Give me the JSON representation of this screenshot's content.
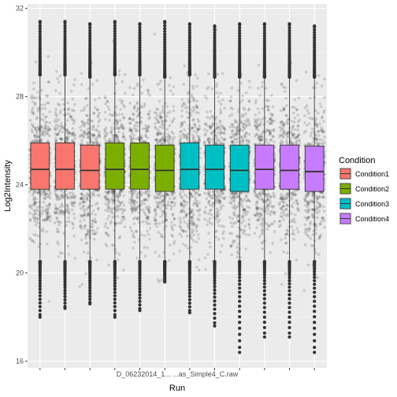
{
  "chart_data": {
    "type": "box",
    "xlabel": "Run",
    "ylabel": "Log2Intensity",
    "ylim": [
      15.7,
      32.2
    ],
    "yticks": [
      16,
      20,
      24,
      28,
      32
    ],
    "grid": true,
    "legend_placement": "right",
    "legend": {
      "title": "Condition",
      "entries": [
        {
          "name": "Condition1",
          "color": "#F8766D"
        },
        {
          "name": "Condition2",
          "color": "#7CAE00"
        },
        {
          "name": "Condition3",
          "color": "#00BFC4"
        },
        {
          "name": "Condition4",
          "color": "#C77CFF"
        }
      ]
    },
    "x_tick_labels_visible": "D_06232014_1...  ...as_Simple4_C.raw",
    "runs": [
      {
        "condition": "Condition1",
        "q1": 23.8,
        "median": 24.7,
        "q3": 25.9,
        "whisker_low": 20.6,
        "whisker_high": 28.9,
        "min": 18.0,
        "max": 31.4
      },
      {
        "condition": "Condition1",
        "q1": 23.8,
        "median": 24.7,
        "q3": 25.9,
        "whisker_low": 20.6,
        "whisker_high": 28.9,
        "min": 18.4,
        "max": 31.4
      },
      {
        "condition": "Condition1",
        "q1": 23.8,
        "median": 24.65,
        "q3": 25.8,
        "whisker_low": 20.6,
        "whisker_high": 28.8,
        "min": 18.6,
        "max": 31.3
      },
      {
        "condition": "Condition2",
        "q1": 23.8,
        "median": 24.7,
        "q3": 25.9,
        "whisker_low": 20.6,
        "whisker_high": 28.9,
        "min": 18.0,
        "max": 31.4
      },
      {
        "condition": "Condition2",
        "q1": 23.8,
        "median": 24.7,
        "q3": 25.9,
        "whisker_low": 20.6,
        "whisker_high": 28.9,
        "min": 18.3,
        "max": 31.3
      },
      {
        "condition": "Condition2",
        "q1": 23.7,
        "median": 24.65,
        "q3": 25.8,
        "whisker_low": 20.6,
        "whisker_high": 28.8,
        "min": 19.6,
        "max": 31.4
      },
      {
        "condition": "Condition3",
        "q1": 23.8,
        "median": 24.7,
        "q3": 25.9,
        "whisker_low": 20.6,
        "whisker_high": 28.9,
        "min": 18.2,
        "max": 31.3
      },
      {
        "condition": "Condition3",
        "q1": 23.8,
        "median": 24.7,
        "q3": 25.8,
        "whisker_low": 20.6,
        "whisker_high": 28.8,
        "min": 17.6,
        "max": 31.2
      },
      {
        "condition": "Condition3",
        "q1": 23.7,
        "median": 24.65,
        "q3": 25.8,
        "whisker_low": 20.6,
        "whisker_high": 28.8,
        "min": 16.4,
        "max": 31.3
      },
      {
        "condition": "Condition4",
        "q1": 23.8,
        "median": 24.7,
        "q3": 25.8,
        "whisker_low": 20.6,
        "whisker_high": 28.8,
        "min": 17.1,
        "max": 31.3
      },
      {
        "condition": "Condition4",
        "q1": 23.8,
        "median": 24.65,
        "q3": 25.8,
        "whisker_low": 20.6,
        "whisker_high": 28.8,
        "min": 17.1,
        "max": 31.3
      },
      {
        "condition": "Condition4",
        "q1": 23.7,
        "median": 24.6,
        "q3": 25.75,
        "whisker_low": 20.6,
        "whisker_high": 28.8,
        "min": 16.4,
        "max": 31.2
      }
    ]
  }
}
